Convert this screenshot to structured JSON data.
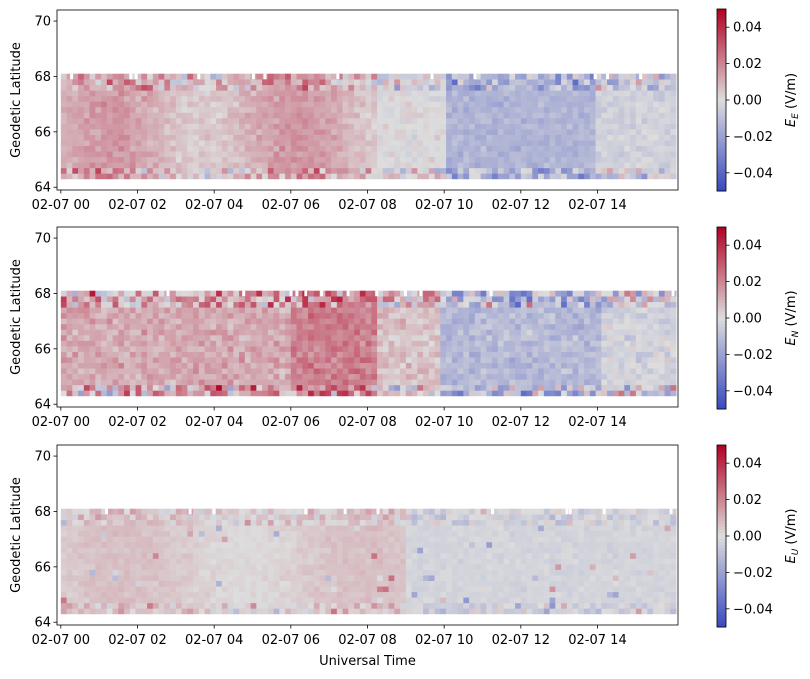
{
  "colormap": {
    "low": "#3b4cc0",
    "mid": "#dddddd",
    "high": "#b40426"
  },
  "chart_data": [
    {
      "type": "heatmap",
      "title": "",
      "xlabel": "",
      "ylabel": "Geodetic Latitude",
      "colorbar_label": "E_E (V/m)",
      "colorbar_label_parts": {
        "main": "E",
        "sub": "E",
        "unit": " (V/m)"
      },
      "xlim_hours": [
        -0.1,
        16.1
      ],
      "ylim": [
        63.9,
        70.4
      ],
      "xticks": [
        {
          "hour": 0,
          "label": "02-07 00"
        },
        {
          "hour": 2,
          "label": "02-07 02"
        },
        {
          "hour": 4,
          "label": "02-07 04"
        },
        {
          "hour": 6,
          "label": "02-07 06"
        },
        {
          "hour": 8,
          "label": "02-07 08"
        },
        {
          "hour": 10,
          "label": "02-07 10"
        },
        {
          "hour": 12,
          "label": "02-07 12"
        },
        {
          "hour": 14,
          "label": "02-07 14"
        }
      ],
      "yticks": [
        {
          "v": 64,
          "label": "64"
        },
        {
          "v": 66,
          "label": "66"
        },
        {
          "v": 68,
          "label": "68"
        },
        {
          "v": 70,
          "label": "70"
        }
      ],
      "clim": [
        -0.05,
        0.05
      ],
      "cticks": [
        {
          "v": 0.04,
          "label": "0.04"
        },
        {
          "v": 0.02,
          "label": "0.02"
        },
        {
          "v": 0.0,
          "label": "0.00"
        },
        {
          "v": -0.02,
          "label": "−0.02"
        },
        {
          "v": -0.04,
          "label": "−0.04"
        }
      ],
      "time_start_hour": 0.0,
      "time_step_hour": 0.15,
      "lat_start": 64.3,
      "lat_step": 0.2,
      "grid": false
    },
    {
      "type": "heatmap",
      "title": "",
      "xlabel": "",
      "ylabel": "Geodetic Latitude",
      "colorbar_label": "E_N (V/m)",
      "colorbar_label_parts": {
        "main": "E",
        "sub": "N",
        "unit": " (V/m)"
      },
      "xlim_hours": [
        -0.1,
        16.1
      ],
      "ylim": [
        63.9,
        70.4
      ],
      "xticks": [
        {
          "hour": 0,
          "label": "02-07 00"
        },
        {
          "hour": 2,
          "label": "02-07 02"
        },
        {
          "hour": 4,
          "label": "02-07 04"
        },
        {
          "hour": 6,
          "label": "02-07 06"
        },
        {
          "hour": 8,
          "label": "02-07 08"
        },
        {
          "hour": 10,
          "label": "02-07 10"
        },
        {
          "hour": 12,
          "label": "02-07 12"
        },
        {
          "hour": 14,
          "label": "02-07 14"
        }
      ],
      "yticks": [
        {
          "v": 64,
          "label": "64"
        },
        {
          "v": 66,
          "label": "66"
        },
        {
          "v": 68,
          "label": "68"
        },
        {
          "v": 70,
          "label": "70"
        }
      ],
      "clim": [
        -0.05,
        0.05
      ],
      "cticks": [
        {
          "v": 0.04,
          "label": "0.04"
        },
        {
          "v": 0.02,
          "label": "0.02"
        },
        {
          "v": 0.0,
          "label": "0.00"
        },
        {
          "v": -0.02,
          "label": "−0.02"
        },
        {
          "v": -0.04,
          "label": "−0.04"
        }
      ],
      "time_start_hour": 0.0,
      "time_step_hour": 0.15,
      "lat_start": 64.3,
      "lat_step": 0.2,
      "grid": false
    },
    {
      "type": "heatmap",
      "title": "",
      "xlabel": "Universal Time",
      "ylabel": "Geodetic Latitude",
      "colorbar_label": "E_U (V/m)",
      "colorbar_label_parts": {
        "main": "E",
        "sub": "U",
        "unit": " (V/m)"
      },
      "xlim_hours": [
        -0.1,
        16.1
      ],
      "ylim": [
        63.9,
        70.4
      ],
      "xticks": [
        {
          "hour": 0,
          "label": "02-07 00"
        },
        {
          "hour": 2,
          "label": "02-07 02"
        },
        {
          "hour": 4,
          "label": "02-07 04"
        },
        {
          "hour": 6,
          "label": "02-07 06"
        },
        {
          "hour": 8,
          "label": "02-07 08"
        },
        {
          "hour": 10,
          "label": "02-07 10"
        },
        {
          "hour": 12,
          "label": "02-07 12"
        },
        {
          "hour": 14,
          "label": "02-07 14"
        }
      ],
      "yticks": [
        {
          "v": 64,
          "label": "64"
        },
        {
          "v": 66,
          "label": "66"
        },
        {
          "v": 68,
          "label": "68"
        },
        {
          "v": 70,
          "label": "70"
        }
      ],
      "clim": [
        -0.05,
        0.05
      ],
      "cticks": [
        {
          "v": 0.04,
          "label": "0.04"
        },
        {
          "v": 0.02,
          "label": "0.02"
        },
        {
          "v": 0.0,
          "label": "0.00"
        },
        {
          "v": -0.02,
          "label": "−0.02"
        },
        {
          "v": -0.04,
          "label": "−0.04"
        }
      ],
      "time_start_hour": 0.0,
      "time_step_hour": 0.15,
      "lat_start": 64.3,
      "lat_step": 0.2,
      "grid": false
    }
  ]
}
